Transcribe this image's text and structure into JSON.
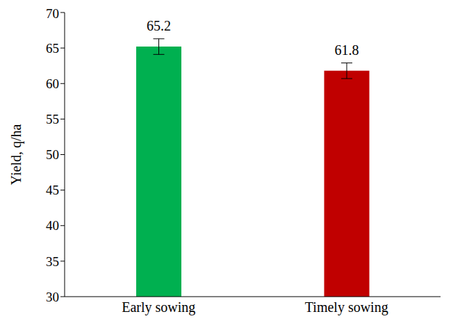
{
  "chart_data": {
    "type": "bar",
    "y_label": "Yield, q/ha",
    "categories": [
      "Early sowing",
      "Timely sowing"
    ],
    "values": [
      65.2,
      61.8
    ],
    "errors": [
      1.1,
      1.1
    ],
    "colors": [
      "#00b050",
      "#c00000"
    ],
    "ylim": [
      30,
      70
    ],
    "yticks": [
      30,
      35,
      40,
      45,
      50,
      55,
      60,
      65,
      70
    ],
    "grid": false,
    "data_labels": true
  }
}
